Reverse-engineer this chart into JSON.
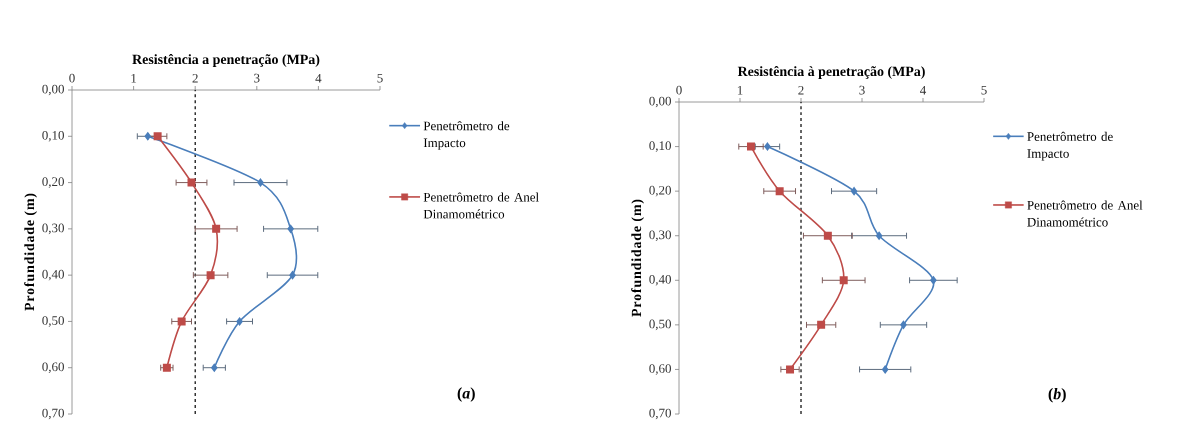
{
  "chart_data": [
    {
      "type": "line",
      "xlabel": "Resistência a penetração (MPa)",
      "ylabel": "Profundidade (m)",
      "xlim": [
        0,
        5
      ],
      "xticks": [
        0,
        1,
        2,
        3,
        4,
        5
      ],
      "ylim": [
        0.7,
        0
      ],
      "yticks": [
        {
          "value": 0,
          "label": "0,00"
        },
        {
          "value": 0.1,
          "label": "0,10"
        },
        {
          "value": 0.2,
          "label": "0,20"
        },
        {
          "value": 0.3,
          "label": "0,30"
        },
        {
          "value": 0.4,
          "label": "0,40"
        },
        {
          "value": 0.5,
          "label": "0,50"
        },
        {
          "value": 0.6,
          "label": "0,60"
        },
        {
          "value": 0.7,
          "label": "0,70"
        }
      ],
      "series": [
        {
          "name": "Penetrômetro de Impacto",
          "color": "#4a7ebb",
          "marker": "diamond",
          "x": [
            1.23,
            3.06,
            3.55,
            3.58,
            2.72,
            2.31
          ],
          "values": [
            0.1,
            0.2,
            0.3,
            0.4,
            0.5,
            0.6
          ],
          "xerrors": [
            0.17,
            0.43,
            0.44,
            0.41,
            0.21,
            0.18
          ]
        },
        {
          "name": "Penetrômetro de Anel Dinamométrico",
          "color": "#be4b48",
          "marker": "square",
          "x": [
            1.39,
            1.94,
            2.34,
            2.25,
            1.78,
            1.54
          ],
          "values": [
            0.1,
            0.2,
            0.3,
            0.4,
            0.5,
            0.6
          ],
          "xerrors": [
            0.15,
            0.25,
            0.34,
            0.28,
            0.16,
            0.1
          ]
        }
      ],
      "ref_lines": [
        {
          "axis": "x",
          "value": 2,
          "color": "#000000",
          "line_style": "dashed"
        }
      ],
      "legend": "right",
      "annotations": [
        "(*a*)"
      ]
    },
    {
      "type": "line",
      "xlabel": "Resistência à penetração (MPa)",
      "ylabel": "Profundidade (m)",
      "xlim": [
        0,
        5
      ],
      "xticks": [
        0,
        1,
        2,
        3,
        4,
        5
      ],
      "ylim": [
        0.7,
        0
      ],
      "yticks": [
        {
          "value": 0,
          "label": "0,00"
        },
        {
          "value": 0.1,
          "label": "0,10"
        },
        {
          "value": 0.2,
          "label": "0,20"
        },
        {
          "value": 0.3,
          "label": "0,30"
        },
        {
          "value": 0.4,
          "label": "0,40"
        },
        {
          "value": 0.5,
          "label": "0,50"
        },
        {
          "value": 0.6,
          "label": "0,60"
        },
        {
          "value": 0.7,
          "label": "0,70"
        }
      ],
      "series": [
        {
          "name": "Penetrômetro de Impacto",
          "color": "#4a7ebb",
          "marker": "diamond",
          "x": [
            1.45,
            2.87,
            3.28,
            4.17,
            3.68,
            3.38
          ],
          "values": [
            0.1,
            0.2,
            0.3,
            0.4,
            0.5,
            0.6
          ],
          "xerrors": [
            0.2,
            0.37,
            0.45,
            0.39,
            0.38,
            0.42
          ]
        },
        {
          "name": "Penetrômetro de Anel Dinamométrico",
          "color": "#be4b48",
          "marker": "square",
          "x": [
            1.18,
            1.65,
            2.44,
            2.7,
            2.33,
            1.82
          ],
          "values": [
            0.1,
            0.2,
            0.3,
            0.4,
            0.5,
            0.6
          ],
          "xerrors": [
            0.2,
            0.26,
            0.4,
            0.35,
            0.24,
            0.15
          ]
        }
      ],
      "ref_lines": [
        {
          "axis": "x",
          "value": 2,
          "color": "#000000",
          "line_style": "dashed"
        }
      ],
      "legend": "right",
      "annotations": [
        "(*b*)"
      ]
    }
  ]
}
